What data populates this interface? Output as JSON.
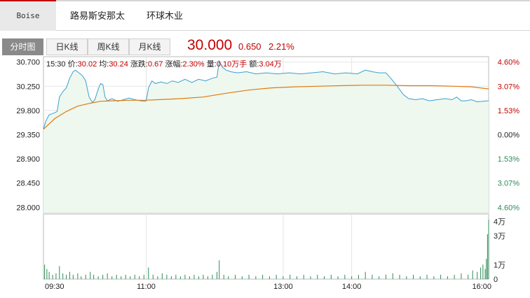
{
  "company_tabs": [
    {
      "label": "Boise",
      "active": true
    },
    {
      "label": "路易斯安那太",
      "active": false
    },
    {
      "label": "环球木业",
      "active": false
    }
  ],
  "chart_tabs": [
    {
      "label": "分时图",
      "active": true
    },
    {
      "label": "日K线",
      "active": false
    },
    {
      "label": "周K线",
      "active": false
    },
    {
      "label": "月K线",
      "active": false
    }
  ],
  "quote": {
    "price": "30.000",
    "change": "0.650",
    "change_pct": "2.21%"
  },
  "info": {
    "time": "15:30",
    "price_label": "价:",
    "price": "30.02",
    "avg_label": "均:",
    "avg": "30.24",
    "chg_label": "涨跌:",
    "chg": "0.67",
    "amp_label": "涨幅:",
    "amp": "2.30%",
    "vol_label": "量:",
    "vol": "0.10万手",
    "amt_label": "额:",
    "amt": "3.04万"
  },
  "colors": {
    "price_line": "#3a9fd0",
    "avg_line": "#e07a10",
    "area_fill": "#eef8ee",
    "up": "#c40000",
    "down": "#2e8b57",
    "volume": "#2e8b57"
  },
  "chart_data": {
    "type": "line",
    "prev_close": 29.35,
    "y_ticks": [
      "30.700",
      "30.250",
      "29.800",
      "29.350",
      "28.900",
      "28.450",
      "28.000"
    ],
    "y_ticks_values": [
      30.7,
      30.25,
      29.8,
      29.35,
      28.9,
      28.45,
      28.0
    ],
    "pct_ticks": [
      "4.60%",
      "3.07%",
      "1.53%",
      "0.00%",
      "1.53%",
      "3.07%",
      "4.60%"
    ],
    "x_ticks": [
      "09:30",
      "11:00",
      "13:00",
      "14:00",
      "16:00"
    ],
    "x_ticks_minutes": [
      0,
      90,
      210,
      270,
      390
    ],
    "session_minutes": 390,
    "ylim": [
      27.9,
      30.8
    ],
    "series": [
      {
        "name": "价",
        "points": [
          [
            0,
            29.45
          ],
          [
            2,
            29.6
          ],
          [
            5,
            29.72
          ],
          [
            9,
            29.75
          ],
          [
            12,
            29.78
          ],
          [
            14,
            30.05
          ],
          [
            17,
            30.15
          ],
          [
            20,
            30.22
          ],
          [
            23,
            30.4
          ],
          [
            26,
            30.52
          ],
          [
            28,
            30.55
          ],
          [
            31,
            30.5
          ],
          [
            34,
            30.45
          ],
          [
            37,
            30.35
          ],
          [
            40,
            30.05
          ],
          [
            43,
            29.95
          ],
          [
            45,
            30.0
          ],
          [
            48,
            30.2
          ],
          [
            50,
            30.3
          ],
          [
            52,
            30.28
          ],
          [
            54,
            30.05
          ],
          [
            56,
            29.98
          ],
          [
            60,
            30.02
          ],
          [
            65,
            29.97
          ],
          [
            70,
            30.0
          ],
          [
            75,
            30.03
          ],
          [
            80,
            30.0
          ],
          [
            85,
            29.98
          ],
          [
            89,
            29.97
          ],
          [
            90,
            29.98
          ],
          [
            92,
            30.22
          ],
          [
            95,
            30.35
          ],
          [
            98,
            30.3
          ],
          [
            103,
            30.33
          ],
          [
            108,
            30.3
          ],
          [
            113,
            30.35
          ],
          [
            118,
            30.32
          ],
          [
            124,
            30.38
          ],
          [
            130,
            30.32
          ],
          [
            136,
            30.38
          ],
          [
            142,
            30.35
          ],
          [
            148,
            30.4
          ],
          [
            152,
            30.42
          ],
          [
            154,
            30.72
          ],
          [
            157,
            30.6
          ],
          [
            160,
            30.55
          ],
          [
            164,
            30.52
          ],
          [
            170,
            30.5
          ],
          [
            178,
            30.52
          ],
          [
            186,
            30.48
          ],
          [
            195,
            30.5
          ],
          [
            205,
            30.48
          ],
          [
            215,
            30.5
          ],
          [
            225,
            30.48
          ],
          [
            235,
            30.5
          ],
          [
            245,
            30.52
          ],
          [
            255,
            30.48
          ],
          [
            265,
            30.5
          ],
          [
            275,
            30.48
          ],
          [
            282,
            30.55
          ],
          [
            288,
            30.52
          ],
          [
            294,
            30.5
          ],
          [
            300,
            30.5
          ],
          [
            305,
            30.38
          ],
          [
            310,
            30.25
          ],
          [
            315,
            30.1
          ],
          [
            320,
            30.02
          ],
          [
            326,
            30.0
          ],
          [
            332,
            30.02
          ],
          [
            338,
            29.98
          ],
          [
            345,
            30.0
          ],
          [
            352,
            30.02
          ],
          [
            358,
            30.0
          ],
          [
            362,
            30.05
          ],
          [
            366,
            29.98
          ],
          [
            370,
            29.98
          ],
          [
            375,
            30.0
          ],
          [
            380,
            29.96
          ],
          [
            385,
            29.97
          ],
          [
            390,
            29.98
          ]
        ]
      },
      {
        "name": "均",
        "points": [
          [
            0,
            29.45
          ],
          [
            10,
            29.65
          ],
          [
            20,
            29.78
          ],
          [
            30,
            29.88
          ],
          [
            40,
            29.93
          ],
          [
            50,
            29.97
          ],
          [
            60,
            29.98
          ],
          [
            75,
            29.99
          ],
          [
            89,
            29.99
          ],
          [
            100,
            30.0
          ],
          [
            120,
            30.02
          ],
          [
            140,
            30.05
          ],
          [
            160,
            30.12
          ],
          [
            180,
            30.18
          ],
          [
            200,
            30.22
          ],
          [
            220,
            30.24
          ],
          [
            240,
            30.25
          ],
          [
            260,
            30.26
          ],
          [
            280,
            30.27
          ],
          [
            300,
            30.27
          ],
          [
            320,
            30.26
          ],
          [
            340,
            30.26
          ],
          [
            360,
            30.25
          ],
          [
            375,
            30.24
          ],
          [
            390,
            30.2
          ]
        ]
      }
    ],
    "volume": {
      "y_ticks": [
        "4万",
        "3万",
        "1万",
        "0"
      ],
      "y_ticks_values": [
        4,
        3,
        1,
        0
      ],
      "ylim": [
        0,
        4.5
      ],
      "bars": [
        [
          1,
          1.0
        ],
        [
          3,
          0.7
        ],
        [
          5,
          0.5
        ],
        [
          8,
          0.3
        ],
        [
          11,
          0.4
        ],
        [
          14,
          0.9
        ],
        [
          17,
          0.4
        ],
        [
          20,
          0.3
        ],
        [
          23,
          0.5
        ],
        [
          26,
          0.3
        ],
        [
          30,
          0.4
        ],
        [
          33,
          0.2
        ],
        [
          37,
          0.3
        ],
        [
          41,
          0.5
        ],
        [
          44,
          0.3
        ],
        [
          48,
          0.2
        ],
        [
          52,
          0.3
        ],
        [
          56,
          0.4
        ],
        [
          60,
          0.2
        ],
        [
          64,
          0.3
        ],
        [
          68,
          0.2
        ],
        [
          72,
          0.3
        ],
        [
          76,
          0.2
        ],
        [
          80,
          0.3
        ],
        [
          84,
          0.2
        ],
        [
          88,
          0.3
        ],
        [
          92,
          0.8
        ],
        [
          96,
          0.3
        ],
        [
          100,
          0.2
        ],
        [
          104,
          0.4
        ],
        [
          108,
          0.3
        ],
        [
          112,
          0.2
        ],
        [
          116,
          0.3
        ],
        [
          120,
          0.2
        ],
        [
          124,
          0.3
        ],
        [
          128,
          0.2
        ],
        [
          132,
          0.3
        ],
        [
          136,
          0.2
        ],
        [
          140,
          0.3
        ],
        [
          144,
          0.2
        ],
        [
          148,
          0.3
        ],
        [
          152,
          0.5
        ],
        [
          154,
          1.3
        ],
        [
          158,
          0.3
        ],
        [
          162,
          0.2
        ],
        [
          168,
          0.3
        ],
        [
          174,
          0.2
        ],
        [
          180,
          0.3
        ],
        [
          186,
          0.2
        ],
        [
          192,
          0.3
        ],
        [
          198,
          0.2
        ],
        [
          204,
          0.3
        ],
        [
          210,
          0.2
        ],
        [
          216,
          0.3
        ],
        [
          222,
          0.2
        ],
        [
          228,
          0.3
        ],
        [
          234,
          0.2
        ],
        [
          240,
          0.3
        ],
        [
          246,
          0.2
        ],
        [
          252,
          0.3
        ],
        [
          258,
          0.2
        ],
        [
          264,
          0.3
        ],
        [
          270,
          0.2
        ],
        [
          276,
          0.3
        ],
        [
          282,
          0.5
        ],
        [
          288,
          0.3
        ],
        [
          294,
          0.2
        ],
        [
          300,
          0.3
        ],
        [
          306,
          0.4
        ],
        [
          312,
          0.3
        ],
        [
          318,
          0.2
        ],
        [
          324,
          0.3
        ],
        [
          330,
          0.2
        ],
        [
          336,
          0.3
        ],
        [
          342,
          0.2
        ],
        [
          348,
          0.3
        ],
        [
          354,
          0.2
        ],
        [
          360,
          0.3
        ],
        [
          366,
          0.4
        ],
        [
          372,
          0.3
        ],
        [
          376,
          0.6
        ],
        [
          380,
          0.5
        ],
        [
          383,
          0.8
        ],
        [
          385,
          1.0
        ],
        [
          387,
          0.7
        ],
        [
          388,
          1.4
        ],
        [
          389,
          3.1
        ],
        [
          390,
          4.1
        ]
      ]
    }
  }
}
